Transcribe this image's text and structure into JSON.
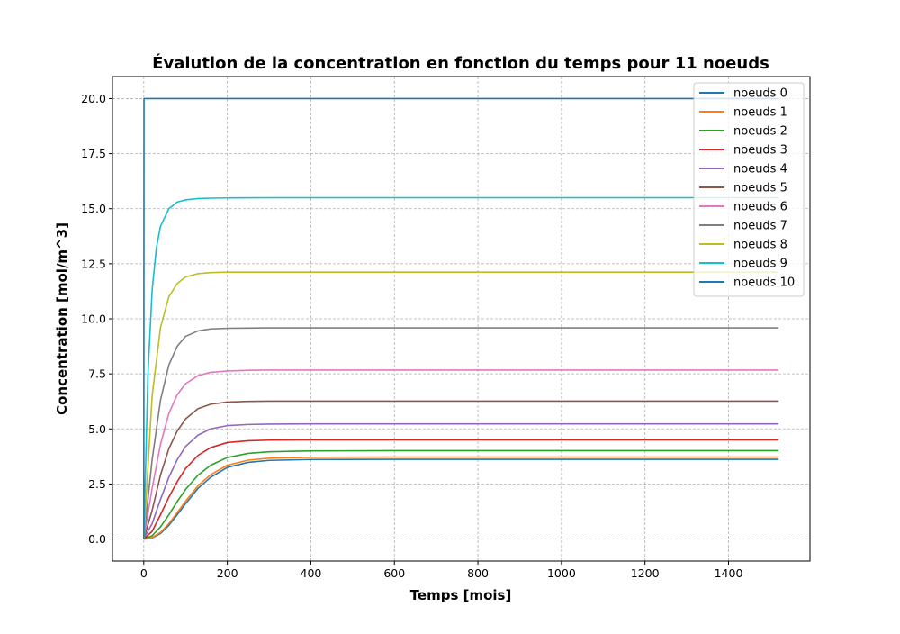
{
  "chart_data": {
    "type": "line",
    "title": "Évalution de la concentration en fonction du temps pour 11 noeuds",
    "xlabel": "Temps [mois]",
    "ylabel": "Concentration [mol/m^3]",
    "xlim": [
      -75,
      1595
    ],
    "ylim": [
      -1.0,
      21.0
    ],
    "xticks": [
      0,
      200,
      400,
      600,
      800,
      1000,
      1200,
      1400
    ],
    "yticks": [
      0.0,
      2.5,
      5.0,
      7.5,
      10.0,
      12.5,
      15.0,
      17.5,
      20.0
    ],
    "xtick_labels": [
      "0",
      "200",
      "400",
      "600",
      "800",
      "1000",
      "1200",
      "1400"
    ],
    "ytick_labels": [
      "0.0",
      "2.5",
      "5.0",
      "7.5",
      "10.0",
      "12.5",
      "15.0",
      "17.5",
      "20.0"
    ],
    "grid": true,
    "legend_position": "top-right",
    "x_end": 1520,
    "series": [
      {
        "name": "noeuds 0",
        "color": "#1f77b4",
        "x": [
          0,
          20,
          40,
          60,
          80,
          100,
          130,
          160,
          200,
          250,
          300,
          400,
          600,
          1000,
          1520
        ],
        "y": [
          0.0,
          0.05,
          0.25,
          0.62,
          1.1,
          1.6,
          2.3,
          2.8,
          3.25,
          3.48,
          3.57,
          3.61,
          3.62,
          3.62,
          3.62
        ]
      },
      {
        "name": "noeuds 1",
        "color": "#ff7f0e",
        "x": [
          0,
          20,
          40,
          60,
          80,
          100,
          130,
          160,
          200,
          250,
          300,
          400,
          600,
          1000,
          1520
        ],
        "y": [
          0.0,
          0.07,
          0.3,
          0.7,
          1.2,
          1.72,
          2.42,
          2.92,
          3.35,
          3.58,
          3.67,
          3.71,
          3.72,
          3.72,
          3.72
        ]
      },
      {
        "name": "noeuds 2",
        "color": "#2ca02c",
        "x": [
          0,
          20,
          40,
          60,
          80,
          100,
          130,
          160,
          200,
          250,
          300,
          400,
          600,
          1000,
          1520
        ],
        "y": [
          0.0,
          0.15,
          0.55,
          1.1,
          1.7,
          2.25,
          2.9,
          3.35,
          3.7,
          3.89,
          3.96,
          4.0,
          4.01,
          4.01,
          4.01
        ]
      },
      {
        "name": "noeuds 3",
        "color": "#d62728",
        "x": [
          0,
          20,
          40,
          60,
          80,
          100,
          130,
          160,
          200,
          250,
          300,
          400,
          600,
          1000,
          1520
        ],
        "y": [
          0.0,
          0.35,
          1.1,
          1.9,
          2.6,
          3.2,
          3.8,
          4.15,
          4.38,
          4.46,
          4.49,
          4.5,
          4.5,
          4.5,
          4.5
        ]
      },
      {
        "name": "noeuds 4",
        "color": "#9467bd",
        "x": [
          0,
          20,
          40,
          60,
          80,
          100,
          130,
          160,
          200,
          250,
          300,
          400,
          600,
          1000,
          1520
        ],
        "y": [
          0.0,
          0.7,
          1.8,
          2.8,
          3.6,
          4.2,
          4.72,
          5.0,
          5.15,
          5.2,
          5.22,
          5.23,
          5.23,
          5.23,
          5.23
        ]
      },
      {
        "name": "noeuds 5",
        "color": "#8c564b",
        "x": [
          0,
          20,
          40,
          60,
          80,
          100,
          130,
          160,
          200,
          250,
          300,
          400,
          600,
          1000,
          1520
        ],
        "y": [
          0.0,
          1.3,
          2.9,
          4.1,
          4.9,
          5.45,
          5.92,
          6.12,
          6.22,
          6.25,
          6.26,
          6.26,
          6.26,
          6.26,
          6.26
        ]
      },
      {
        "name": "noeuds 6",
        "color": "#e377c2",
        "x": [
          0,
          20,
          40,
          60,
          80,
          100,
          130,
          160,
          200,
          250,
          300,
          400,
          600,
          1000,
          1520
        ],
        "y": [
          0.0,
          2.3,
          4.3,
          5.7,
          6.55,
          7.05,
          7.42,
          7.57,
          7.63,
          7.66,
          7.67,
          7.67,
          7.67,
          7.67,
          7.67
        ]
      },
      {
        "name": "noeuds 7",
        "color": "#7f7f7f",
        "x": [
          0,
          20,
          40,
          60,
          80,
          100,
          130,
          160,
          200,
          250,
          300,
          400,
          600,
          1000,
          1520
        ],
        "y": [
          0.0,
          3.6,
          6.3,
          7.9,
          8.75,
          9.2,
          9.45,
          9.54,
          9.57,
          9.58,
          9.59,
          9.59,
          9.59,
          9.59,
          9.59
        ]
      },
      {
        "name": "noeuds 8",
        "color": "#bcbd22",
        "x": [
          0,
          20,
          40,
          60,
          80,
          100,
          130,
          160,
          200,
          250,
          300,
          400,
          600,
          1000,
          1520
        ],
        "y": [
          0.0,
          6.5,
          9.6,
          11.0,
          11.6,
          11.9,
          12.05,
          12.1,
          12.12,
          12.12,
          12.12,
          12.12,
          12.12,
          12.12,
          12.12
        ]
      },
      {
        "name": "noeuds 9",
        "color": "#17becf",
        "x": [
          0,
          10,
          20,
          30,
          40,
          60,
          80,
          100,
          130,
          160,
          200,
          300,
          600,
          1000,
          1520
        ],
        "y": [
          0.0,
          7.5,
          11.3,
          13.2,
          14.2,
          15.0,
          15.3,
          15.4,
          15.46,
          15.48,
          15.49,
          15.5,
          15.5,
          15.5,
          15.5
        ]
      },
      {
        "name": "noeuds 10",
        "color": "#1f77b4",
        "x": [
          0,
          0.5,
          1520
        ],
        "y": [
          0.0,
          20.0,
          20.0
        ]
      }
    ]
  }
}
